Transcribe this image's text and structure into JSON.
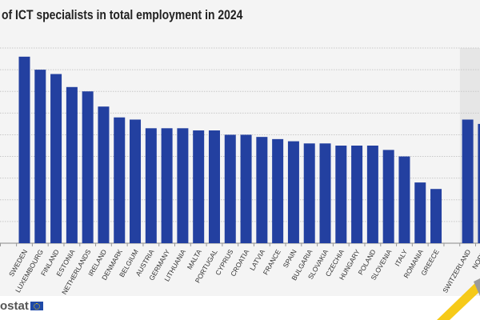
{
  "title": "of ICT specialists in total employment in 2024",
  "footer": {
    "logo_text": "ostat"
  },
  "colors": {
    "bar": "#2340a0",
    "background": "#f4f4f4",
    "non_eu_shade": "#e6e6e6",
    "accent": "#f5c400"
  },
  "chart_data": {
    "type": "bar",
    "title": "of ICT specialists in total employment in 2024",
    "xlabel": "",
    "ylabel": "",
    "ylim": [
      0,
      9
    ],
    "grid": true,
    "categories": [
      "SWEDEN",
      "LUXEMBOURG",
      "FINLAND",
      "ESTONIA",
      "NETHERLANDS",
      "IRELAND",
      "DENMARK",
      "BELGIUM",
      "AUSTRIA",
      "GERMANY",
      "LITHUANIA",
      "MALTA",
      "PORTUGAL",
      "CYPRUS",
      "CROATIA",
      "LATVIA",
      "FRANCE",
      "SPAIN",
      "BULGARIA",
      "SLOVAKIA",
      "CZECHIA",
      "HUNGARY",
      "POLAND",
      "SLOVENIA",
      "ITALY",
      "ROMANIA",
      "GREECE",
      "",
      "SWITZERLAND",
      "NORWAY"
    ],
    "values": [
      8.6,
      8.0,
      7.8,
      7.2,
      7.0,
      6.3,
      5.8,
      5.7,
      5.3,
      5.3,
      5.3,
      5.2,
      5.2,
      5.0,
      5.0,
      4.9,
      4.8,
      4.7,
      4.6,
      4.6,
      4.5,
      4.5,
      4.5,
      4.3,
      4.0,
      2.8,
      2.5,
      null,
      5.7,
      5.5
    ],
    "tick_labels_visible": [
      "SWEDEN",
      "LUXEMBOURG",
      "FINLAND",
      "ESTONIA",
      "NETHERLANDS",
      "IRELAND",
      "DENMARK",
      "BELGIUM",
      "AUSTRIA",
      "GERMANY",
      "LITHUANIA",
      "MALTA",
      "PORTUGAL",
      "CYPRUS",
      "CROATIA",
      "LATVIA",
      "FRANCE",
      "SPAIN",
      "BULGARIA",
      "SLOVAKIA",
      "CZECHIA",
      "HUNGARY",
      "POLAND",
      "SLOVENIA",
      "ITALY",
      "ROMANIA",
      "GREECE",
      "",
      "SWITZERLAND",
      "NORW"
    ]
  }
}
